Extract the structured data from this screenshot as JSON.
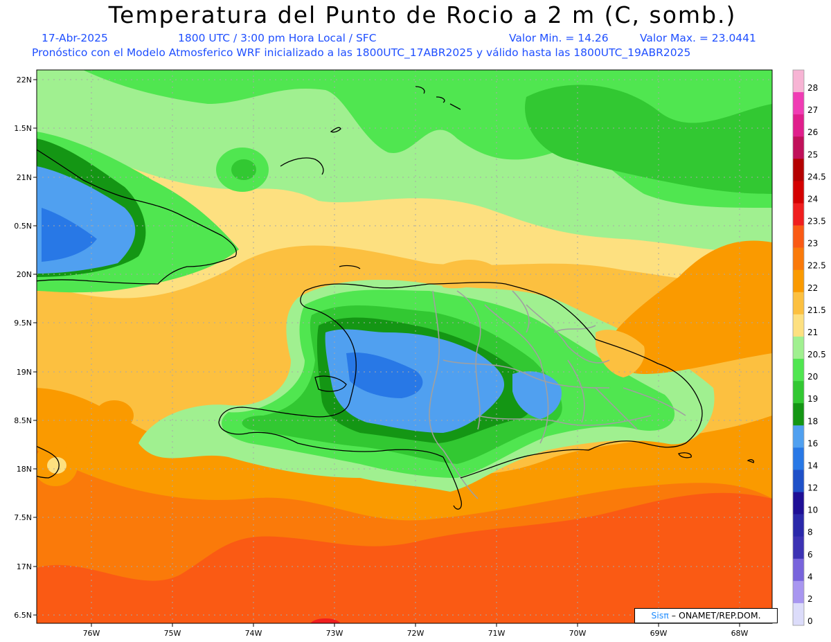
{
  "header": {
    "title": "Temperatura del Punto de Rocio a 2 m (C, somb.)",
    "date": "17-Abr-2025",
    "time": "1800 UTC / 3:00 pm Hora Local / SFC",
    "min": "Valor Min. = 14.26",
    "max": "Valor Max. = 23.0441",
    "forecast": "Pronóstico con el Modelo Atmosferico WRF inicializado a las 1800UTC_17ABR2025 y válido hasta las  1800UTC_19ABR2025"
  },
  "axes": {
    "lat_labels": [
      "22N",
      "1.5N",
      "21N",
      "0.5N",
      "20N",
      "9.5N",
      "19N",
      "8.5N",
      "18N",
      "7.5N",
      "17N",
      "6.5N"
    ],
    "lon_labels": [
      "76W",
      "75W",
      "74W",
      "73W",
      "72W",
      "71W",
      "70W",
      "69W",
      "68W"
    ]
  },
  "colorbar": {
    "labels": [
      "28",
      "27",
      "26",
      "25",
      "24.5",
      "24",
      "23.5",
      "23",
      "22.5",
      "22",
      "21.5",
      "21",
      "20.5",
      "20",
      "19",
      "18",
      "16",
      "14",
      "12",
      "10",
      "8",
      "6",
      "4",
      "2",
      "0"
    ],
    "colors": [
      "#f7b4d4",
      "#f03cb4",
      "#e01e8c",
      "#c0105a",
      "#b40000",
      "#d40000",
      "#f01e1e",
      "#fa5a14",
      "#fa7a0a",
      "#fa9a00",
      "#fcc040",
      "#fde080",
      "#a0f090",
      "#50e650",
      "#32c832",
      "#149614",
      "#50a0f0",
      "#2878e6",
      "#1e50c8",
      "#1e0f96",
      "#2a28aa",
      "#3c32b4",
      "#7864dc",
      "#a896f0",
      "#dcdcfa"
    ]
  },
  "credit": {
    "sis": "Sisπ",
    "org": " – ONAMET/REP.DOM."
  }
}
